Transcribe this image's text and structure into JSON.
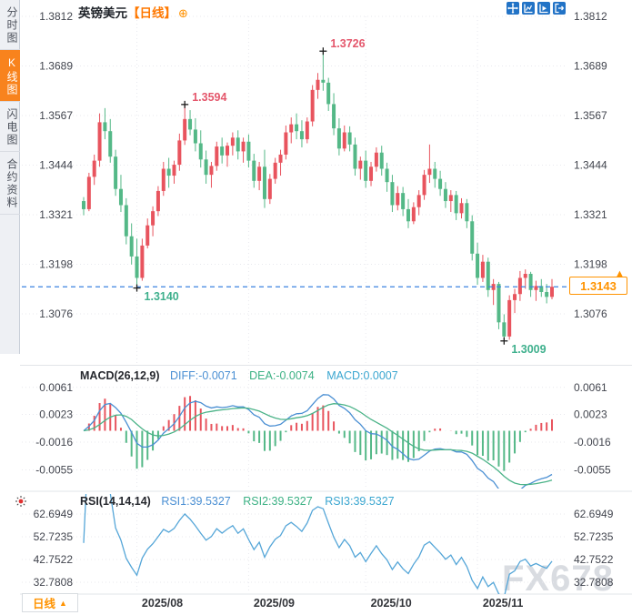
{
  "header": {
    "symbol": "英镑美元",
    "timeframe_tag": "【日线】",
    "expand_icon": "⊕"
  },
  "sidebar": {
    "items": [
      {
        "label": "分时图",
        "active": false
      },
      {
        "label": "K线图",
        "active": true
      },
      {
        "label": "闪电图",
        "active": false
      },
      {
        "label": "合约资料",
        "active": false
      }
    ]
  },
  "toolbar": {
    "icons": [
      "crosshair-icon",
      "axis-range-icon",
      "play-chart-icon",
      "exit-chart-icon"
    ]
  },
  "macd_pane": {
    "title": "MACD(26,12,9)",
    "diff_label": "DIFF:-0.0071",
    "dea_label": "DEA:-0.0074",
    "macd_label": "MACD:0.0007"
  },
  "rsi_pane": {
    "title": "RSI(14,14,14)",
    "rsi1_label": "RSI1:39.5327",
    "rsi2_label": "RSI2:39.5327",
    "rsi3_label": "RSI3:39.5327"
  },
  "footer": {
    "timeframe_button": "日线",
    "arrow": "▲"
  },
  "watermark": "FX678",
  "price_box": {
    "value": "1.3143"
  },
  "colors": {
    "up": "#e8545e",
    "down": "#54b887",
    "accent_orange": "#ff9300",
    "price_line_blue": "#3b82e0",
    "diff_line": "#4a8fd3",
    "dea_line": "#4bb388",
    "rsi_line": "#55a6d8",
    "grid": "#e8e9ee"
  },
  "chart_data": {
    "type": "candlestick",
    "title": "英镑美元 日线",
    "x_labels": [
      "2025/08",
      "2025/09",
      "2025/10",
      "2025/11"
    ],
    "month_start_indices": [
      10,
      31,
      53,
      74
    ],
    "price_y_ticks": [
      "1.3812",
      "1.3689",
      "1.3567",
      "1.3444",
      "1.3321",
      "1.3198",
      "1.3076"
    ],
    "macd_y_ticks": [
      "0.0061",
      "0.0023",
      "-0.0016",
      "-0.0055"
    ],
    "rsi_y_ticks": [
      "62.6949",
      "52.7235",
      "42.7522",
      "32.7808"
    ],
    "last_price": 1.3143,
    "annotations": [
      {
        "i": 19,
        "price": 1.3594,
        "text": "1.3594",
        "type": "high"
      },
      {
        "i": 45,
        "price": 1.3726,
        "text": "1.3726",
        "type": "high"
      },
      {
        "i": 10,
        "price": 1.314,
        "text": "1.3140",
        "type": "low"
      },
      {
        "i": 79,
        "price": 1.3009,
        "text": "1.3009",
        "type": "low"
      }
    ],
    "indicators": {
      "macd": {
        "params": [
          26,
          12,
          9
        ],
        "diff": -0.0071,
        "dea": -0.0074,
        "macd": 0.0007
      },
      "rsi": {
        "params": [
          14,
          14,
          14
        ],
        "rsi1": 39.5327,
        "rsi2": 39.5327,
        "rsi3": 39.5327
      }
    },
    "ohlc": [
      [
        1.3355,
        1.3365,
        1.332,
        1.3335
      ],
      [
        1.3335,
        1.3425,
        1.333,
        1.3415
      ],
      [
        1.3415,
        1.347,
        1.3395,
        1.3455
      ],
      [
        1.3455,
        1.3572,
        1.344,
        1.355
      ],
      [
        1.355,
        1.3585,
        1.3508,
        1.3528
      ],
      [
        1.3528,
        1.3558,
        1.345,
        1.3465
      ],
      [
        1.3465,
        1.3482,
        1.3368,
        1.3385
      ],
      [
        1.3385,
        1.342,
        1.3328,
        1.3345
      ],
      [
        1.3345,
        1.3362,
        1.3248,
        1.3268
      ],
      [
        1.3268,
        1.33,
        1.3198,
        1.3218
      ],
      [
        1.3218,
        1.3262,
        1.314,
        1.3165
      ],
      [
        1.3165,
        1.3262,
        1.3158,
        1.3245
      ],
      [
        1.3245,
        1.3312,
        1.3238,
        1.3295
      ],
      [
        1.3295,
        1.3342,
        1.3268,
        1.333
      ],
      [
        1.333,
        1.3392,
        1.3318,
        1.338
      ],
      [
        1.338,
        1.3452,
        1.3368,
        1.3435
      ],
      [
        1.3435,
        1.3462,
        1.3388,
        1.3418
      ],
      [
        1.3418,
        1.3455,
        1.3398,
        1.3445
      ],
      [
        1.3445,
        1.3522,
        1.343,
        1.3505
      ],
      [
        1.3505,
        1.3594,
        1.3494,
        1.3558
      ],
      [
        1.3558,
        1.358,
        1.3518,
        1.3532
      ],
      [
        1.3532,
        1.356,
        1.3478,
        1.3498
      ],
      [
        1.3498,
        1.353,
        1.3438,
        1.3458
      ],
      [
        1.3458,
        1.348,
        1.3398,
        1.342
      ],
      [
        1.342,
        1.3452,
        1.3388,
        1.3442
      ],
      [
        1.3442,
        1.3502,
        1.343,
        1.349
      ],
      [
        1.349,
        1.3512,
        1.3448,
        1.3468
      ],
      [
        1.3468,
        1.35,
        1.344,
        1.3492
      ],
      [
        1.3492,
        1.3525,
        1.3468,
        1.3512
      ],
      [
        1.3512,
        1.353,
        1.3458,
        1.3478
      ],
      [
        1.3478,
        1.3512,
        1.345,
        1.3502
      ],
      [
        1.3502,
        1.352,
        1.3438,
        1.3455
      ],
      [
        1.3455,
        1.3472,
        1.3388,
        1.3405
      ],
      [
        1.3405,
        1.3452,
        1.3382,
        1.344
      ],
      [
        1.344,
        1.3482,
        1.3338,
        1.336
      ],
      [
        1.336,
        1.3422,
        1.3348,
        1.341
      ],
      [
        1.341,
        1.3462,
        1.3398,
        1.345
      ],
      [
        1.345,
        1.3482,
        1.3418,
        1.347
      ],
      [
        1.347,
        1.3542,
        1.3458,
        1.3525
      ],
      [
        1.3525,
        1.3562,
        1.3498,
        1.3545
      ],
      [
        1.3545,
        1.3572,
        1.3508,
        1.3528
      ],
      [
        1.3528,
        1.3555,
        1.3488,
        1.3508
      ],
      [
        1.3508,
        1.3562,
        1.3498,
        1.3552
      ],
      [
        1.3552,
        1.3642,
        1.354,
        1.363
      ],
      [
        1.363,
        1.3672,
        1.3608,
        1.3655
      ],
      [
        1.3655,
        1.3726,
        1.3628,
        1.3648
      ],
      [
        1.3648,
        1.366,
        1.3578,
        1.3595
      ],
      [
        1.3595,
        1.3622,
        1.3518,
        1.3535
      ],
      [
        1.3535,
        1.356,
        1.3468,
        1.3485
      ],
      [
        1.3485,
        1.3542,
        1.3478,
        1.3525
      ],
      [
        1.3525,
        1.354,
        1.3478,
        1.3495
      ],
      [
        1.3495,
        1.3512,
        1.3418,
        1.3435
      ],
      [
        1.3435,
        1.3465,
        1.3408,
        1.3455
      ],
      [
        1.3455,
        1.348,
        1.3388,
        1.3405
      ],
      [
        1.3405,
        1.3452,
        1.3392,
        1.344
      ],
      [
        1.344,
        1.3488,
        1.3428,
        1.3475
      ],
      [
        1.3475,
        1.3492,
        1.3418,
        1.3435
      ],
      [
        1.3435,
        1.345,
        1.3378,
        1.3402
      ],
      [
        1.3402,
        1.342,
        1.3328,
        1.3345
      ],
      [
        1.3345,
        1.3392,
        1.3332,
        1.3375
      ],
      [
        1.3375,
        1.339,
        1.3318,
        1.3335
      ],
      [
        1.3335,
        1.336,
        1.3288,
        1.3305
      ],
      [
        1.3305,
        1.3352,
        1.3298,
        1.334
      ],
      [
        1.334,
        1.3382,
        1.332,
        1.337
      ],
      [
        1.337,
        1.3432,
        1.3358,
        1.342
      ],
      [
        1.342,
        1.3495,
        1.34,
        1.3435
      ],
      [
        1.3435,
        1.3452,
        1.3388,
        1.341
      ],
      [
        1.341,
        1.343,
        1.3368,
        1.3385
      ],
      [
        1.3385,
        1.3402,
        1.3338,
        1.3355
      ],
      [
        1.3355,
        1.3382,
        1.3328,
        1.337
      ],
      [
        1.337,
        1.338,
        1.3308,
        1.3325
      ],
      [
        1.3325,
        1.3362,
        1.3312,
        1.335
      ],
      [
        1.335,
        1.336,
        1.3288,
        1.3305
      ],
      [
        1.3305,
        1.332,
        1.3208,
        1.3225
      ],
      [
        1.3225,
        1.3252,
        1.3148,
        1.3165
      ],
      [
        1.3165,
        1.3222,
        1.3155,
        1.3205
      ],
      [
        1.3205,
        1.3215,
        1.3118,
        1.3135
      ],
      [
        1.3135,
        1.3162,
        1.3098,
        1.315
      ],
      [
        1.315,
        1.3155,
        1.3038,
        1.3055
      ],
      [
        1.3055,
        1.3075,
        1.3009,
        1.302
      ],
      [
        1.302,
        1.3122,
        1.3012,
        1.311
      ],
      [
        1.311,
        1.3138,
        1.3078,
        1.3125
      ],
      [
        1.3125,
        1.3182,
        1.3108,
        1.3165
      ],
      [
        1.3165,
        1.3186,
        1.3138,
        1.3175
      ],
      [
        1.3175,
        1.318,
        1.3118,
        1.3135
      ],
      [
        1.3135,
        1.3158,
        1.3108,
        1.3145
      ],
      [
        1.3145,
        1.3162,
        1.3118,
        1.313
      ],
      [
        1.313,
        1.315,
        1.3102,
        1.3118
      ],
      [
        1.3118,
        1.3162,
        1.3112,
        1.3143
      ]
    ]
  }
}
